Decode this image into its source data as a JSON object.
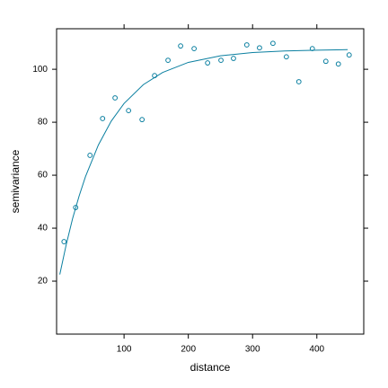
{
  "chart_data": {
    "type": "scatter",
    "xlabel": "distance",
    "ylabel": "semivariance",
    "xlim": [
      -5,
      473
    ],
    "ylim": [
      0,
      115.3
    ],
    "xticks": [
      100,
      200,
      300,
      400
    ],
    "yticks": [
      20,
      40,
      60,
      80,
      100
    ],
    "ticks_all_sides": true,
    "series": [
      {
        "kind": "points",
        "color": "#0a7fa0",
        "x": [
          6.6,
          24.7,
          47,
          66.6,
          86,
          107,
          128,
          147.5,
          168.4,
          188,
          209,
          230,
          250.8,
          270.3,
          291,
          310.8,
          331.7,
          352.6,
          372,
          393,
          414,
          433.5,
          450.3
        ],
        "values": [
          34.9,
          47.8,
          67.5,
          81.4,
          89.2,
          84.4,
          81,
          97.6,
          103.4,
          108.8,
          107.8,
          102.4,
          103.4,
          104.1,
          109.2,
          108.1,
          109.8,
          104.7,
          95.3,
          107.8,
          103,
          102,
          105.4
        ]
      },
      {
        "kind": "line",
        "color": "#0a7fa0",
        "x": [
          0,
          10,
          20,
          30,
          40,
          60,
          80,
          100,
          130,
          160,
          200,
          250,
          300,
          350,
          400,
          448
        ],
        "values": [
          22.5,
          33.8,
          43.7,
          52.1,
          59.5,
          71.4,
          80.4,
          87.1,
          94.2,
          98.8,
          102.6,
          105.1,
          106.3,
          106.9,
          107.2,
          107.4
        ]
      }
    ]
  }
}
